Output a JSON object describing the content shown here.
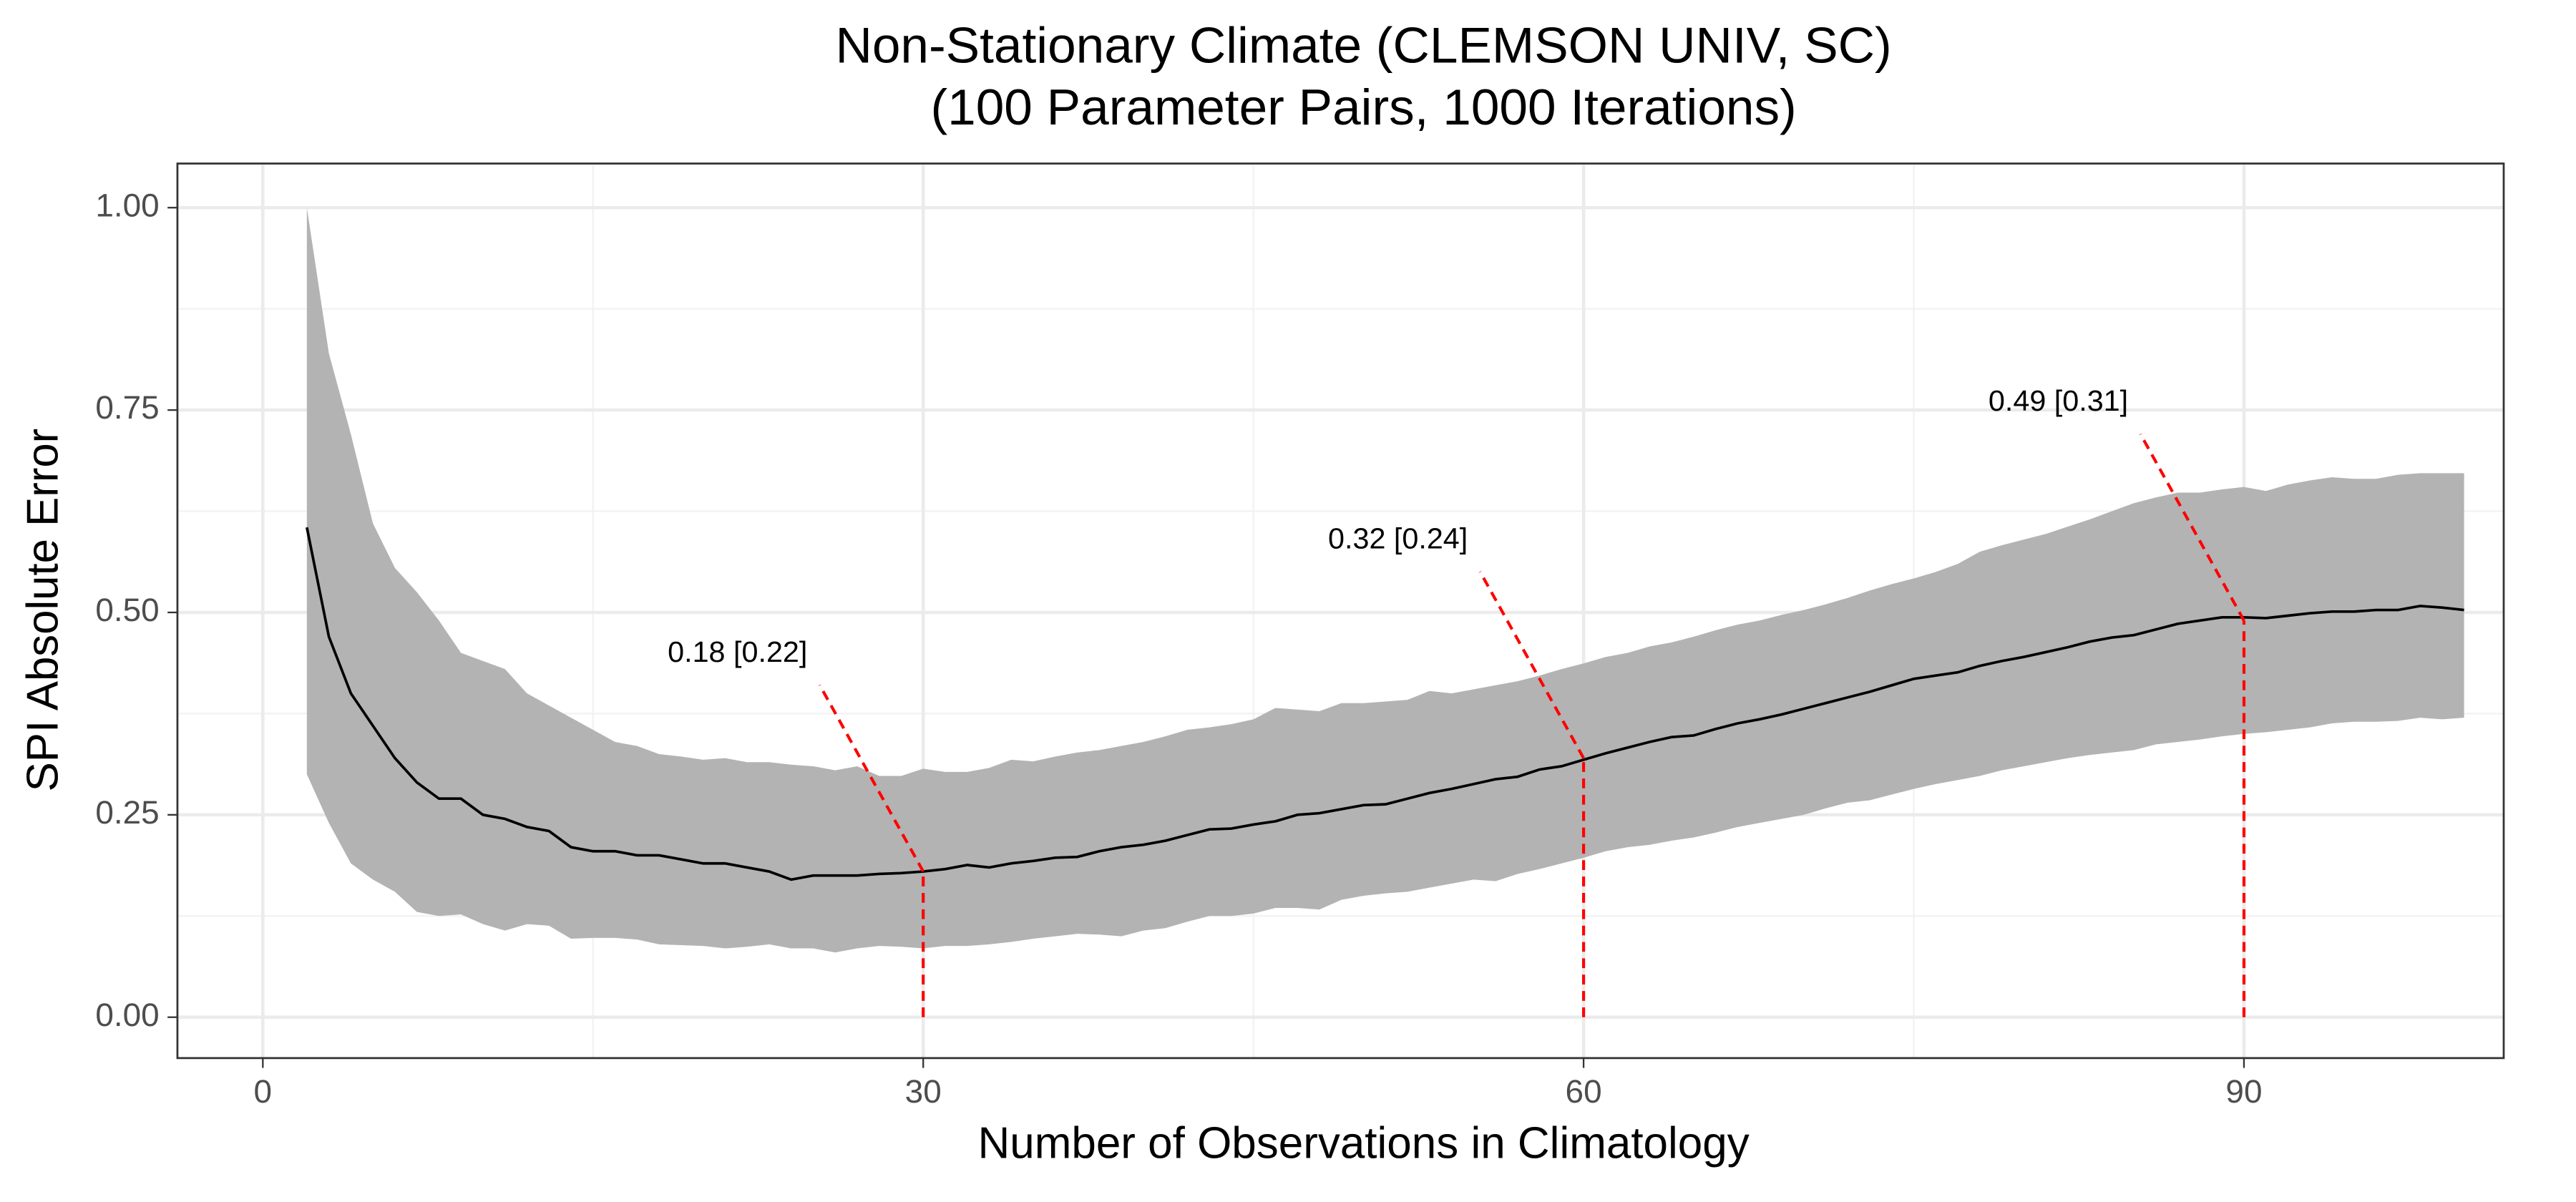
{
  "chart_data": {
    "type": "line",
    "title": "Non-Stationary Climate (CLEMSON UNIV, SC)",
    "subtitle": "(100 Parameter Pairs, 1000 Iterations)",
    "x_label": "Number of Observations in Climatology",
    "y_label": "SPI Absolute Error",
    "xlim": [
      -3.88,
      101.8
    ],
    "ylim": [
      -0.0505,
      1.0545
    ],
    "xticks": [
      0,
      30,
      60,
      90
    ],
    "yticks": [
      {
        "value": 0,
        "label": "0.00"
      },
      {
        "value": 0.25,
        "label": "0.25"
      },
      {
        "value": 0.5,
        "label": "0.50"
      },
      {
        "value": 0.75,
        "label": "0.75"
      },
      {
        "value": 1,
        "label": "1.00"
      }
    ],
    "grid": true,
    "color": "#000000",
    "band_color": "#b3b3b3",
    "annotation_color": "#ff0000",
    "x": [
      2,
      3,
      4,
      5,
      6,
      7,
      8,
      9,
      10,
      11,
      12,
      13,
      14,
      15,
      16,
      17,
      18,
      19,
      20,
      21,
      22,
      23,
      24,
      25,
      26,
      27,
      28,
      29,
      30,
      31,
      32,
      33,
      34,
      35,
      36,
      37,
      38,
      39,
      40,
      41,
      42,
      43,
      44,
      45,
      46,
      47,
      48,
      49,
      50,
      51,
      52,
      53,
      54,
      55,
      56,
      57,
      58,
      59,
      60,
      61,
      62,
      63,
      64,
      65,
      66,
      67,
      68,
      69,
      70,
      71,
      72,
      73,
      74,
      75,
      76,
      77,
      78,
      79,
      80,
      81,
      82,
      83,
      84,
      85,
      86,
      87,
      88,
      89,
      90,
      91,
      92,
      93,
      94,
      95,
      96,
      97,
      98,
      99,
      100
    ],
    "values": [
      0.605,
      0.47,
      0.4,
      0.36,
      0.32,
      0.29,
      0.27,
      0.27,
      0.25,
      0.245,
      0.235,
      0.23,
      0.21,
      0.205,
      0.205,
      0.2,
      0.2,
      0.195,
      0.19,
      0.19,
      0.185,
      0.18,
      0.17,
      0.175,
      0.175,
      0.175,
      0.177,
      0.178,
      0.18,
      0.183,
      0.188,
      0.185,
      0.19,
      0.193,
      0.197,
      0.198,
      0.205,
      0.21,
      0.213,
      0.218,
      0.225,
      0.232,
      0.233,
      0.238,
      0.242,
      0.25,
      0.252,
      0.257,
      0.262,
      0.263,
      0.27,
      0.277,
      0.282,
      0.288,
      0.294,
      0.297,
      0.306,
      0.31,
      0.318,
      0.326,
      0.333,
      0.34,
      0.346,
      0.348,
      0.356,
      0.363,
      0.368,
      0.374,
      0.381,
      0.388,
      0.395,
      0.402,
      0.41,
      0.418,
      0.422,
      0.426,
      0.434,
      0.44,
      0.445,
      0.451,
      0.457,
      0.464,
      0.469,
      0.472,
      0.479,
      0.486,
      0.49,
      0.494,
      0.494,
      0.493,
      0.496,
      0.499,
      0.501,
      0.501,
      0.503,
      0.503,
      0.508,
      0.506,
      0.503
    ],
    "upper": [
      1.0,
      0.82,
      0.72,
      0.61,
      0.555,
      0.525,
      0.49,
      0.45,
      0.44,
      0.43,
      0.4,
      0.385,
      0.37,
      0.355,
      0.34,
      0.335,
      0.325,
      0.322,
      0.318,
      0.32,
      0.315,
      0.315,
      0.312,
      0.31,
      0.305,
      0.31,
      0.298,
      0.298,
      0.307,
      0.303,
      0.303,
      0.308,
      0.318,
      0.316,
      0.322,
      0.327,
      0.33,
      0.335,
      0.34,
      0.347,
      0.355,
      0.358,
      0.362,
      0.368,
      0.382,
      0.38,
      0.378,
      0.388,
      0.388,
      0.39,
      0.392,
      0.403,
      0.4,
      0.405,
      0.41,
      0.415,
      0.422,
      0.43,
      0.437,
      0.445,
      0.45,
      0.458,
      0.463,
      0.47,
      0.478,
      0.485,
      0.49,
      0.497,
      0.503,
      0.51,
      0.518,
      0.527,
      0.535,
      0.542,
      0.55,
      0.56,
      0.575,
      0.583,
      0.59,
      0.597,
      0.606,
      0.615,
      0.625,
      0.635,
      0.642,
      0.648,
      0.648,
      0.652,
      0.655,
      0.65,
      0.658,
      0.663,
      0.667,
      0.665,
      0.665,
      0.67,
      0.672,
      0.672,
      0.672
    ],
    "lower": [
      0.3,
      0.24,
      0.19,
      0.17,
      0.155,
      0.13,
      0.125,
      0.127,
      0.115,
      0.107,
      0.115,
      0.113,
      0.097,
      0.098,
      0.098,
      0.096,
      0.09,
      0.089,
      0.088,
      0.085,
      0.087,
      0.09,
      0.085,
      0.085,
      0.08,
      0.085,
      0.088,
      0.087,
      0.085,
      0.088,
      0.088,
      0.09,
      0.093,
      0.097,
      0.1,
      0.103,
      0.102,
      0.1,
      0.107,
      0.11,
      0.118,
      0.125,
      0.125,
      0.128,
      0.135,
      0.135,
      0.133,
      0.145,
      0.15,
      0.153,
      0.155,
      0.16,
      0.165,
      0.17,
      0.168,
      0.177,
      0.183,
      0.19,
      0.197,
      0.205,
      0.21,
      0.213,
      0.218,
      0.222,
      0.228,
      0.235,
      0.24,
      0.245,
      0.25,
      0.258,
      0.265,
      0.268,
      0.275,
      0.282,
      0.288,
      0.293,
      0.298,
      0.305,
      0.31,
      0.315,
      0.32,
      0.324,
      0.327,
      0.33,
      0.337,
      0.34,
      0.343,
      0.347,
      0.35,
      0.352,
      0.355,
      0.358,
      0.363,
      0.365,
      0.365,
      0.366,
      0.37,
      0.368,
      0.37
    ],
    "annotations": [
      {
        "text": "0.18 [0.22]",
        "x": 30,
        "y": 0.18
      },
      {
        "text": "0.32 [0.24]",
        "x": 60,
        "y": 0.32
      },
      {
        "text": "0.49 [0.31]",
        "x": 90,
        "y": 0.49
      }
    ]
  }
}
